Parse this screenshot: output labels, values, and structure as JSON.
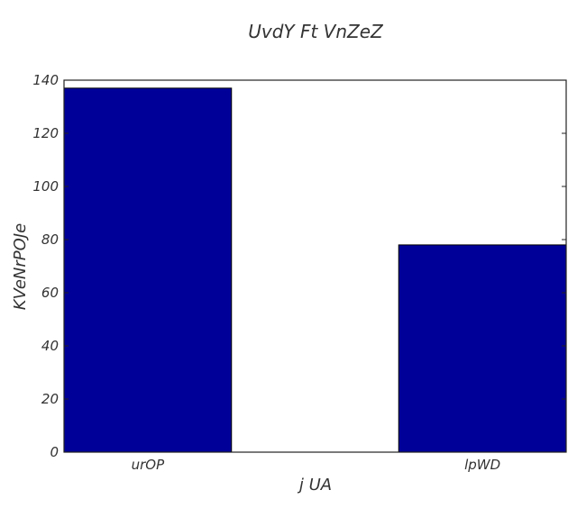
{
  "chart_data": {
    "type": "bar",
    "title": "UvdY Ft VnZeZ",
    "xlabel": "j UA",
    "ylabel": "KVeNrPOJe",
    "categories": [
      "urOP",
      "lpWD"
    ],
    "values": [
      137,
      78
    ],
    "ylim": [
      0,
      140
    ],
    "yticks": [
      0,
      20,
      40,
      60,
      80,
      100,
      120,
      140
    ],
    "grid": false,
    "legend": "none",
    "bar_color": "#000099",
    "edge_color": "#000000"
  }
}
